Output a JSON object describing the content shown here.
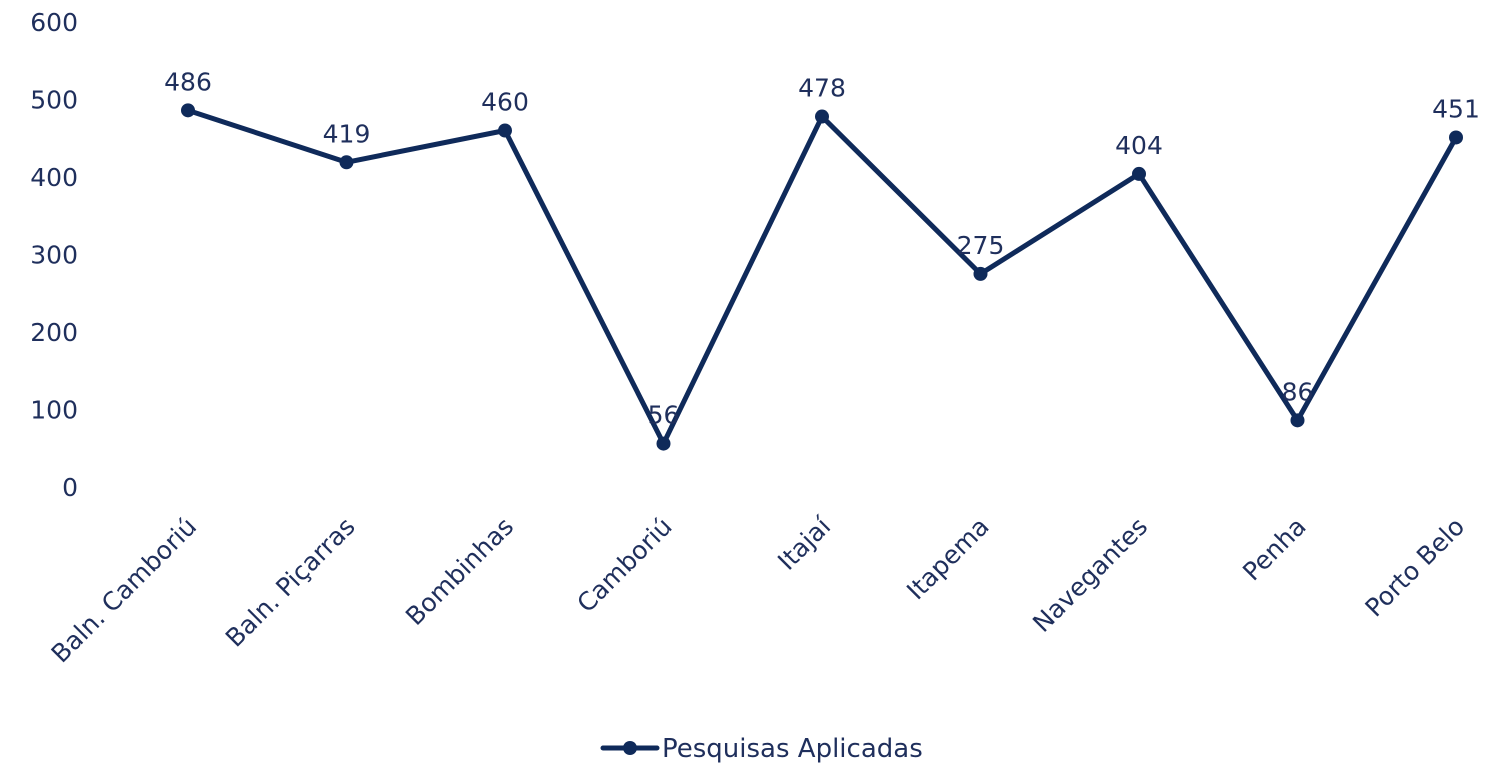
{
  "chart_data": {
    "type": "line",
    "categories": [
      "Baln. Camboriú",
      "Baln. Piçarras",
      "Bombinhas",
      "Camboriú",
      "Itajaí",
      "Itapema",
      "Navegantes",
      "Penha",
      "Porto Belo"
    ],
    "series": [
      {
        "name": "Pesquisas Aplicadas",
        "values": [
          486,
          419,
          460,
          56,
          478,
          275,
          404,
          86,
          451
        ],
        "color": "#0f2a5a"
      }
    ],
    "data_labels": [
      "486",
      "419",
      "460",
      "56",
      "478",
      "275",
      "404",
      "86",
      "451"
    ],
    "y_ticks": [
      "0",
      "100",
      "200",
      "300",
      "400",
      "500",
      "600"
    ],
    "ylim": [
      0,
      600
    ],
    "grid": false,
    "legend_position": "bottom",
    "title": "",
    "xlabel": "",
    "ylabel": ""
  }
}
